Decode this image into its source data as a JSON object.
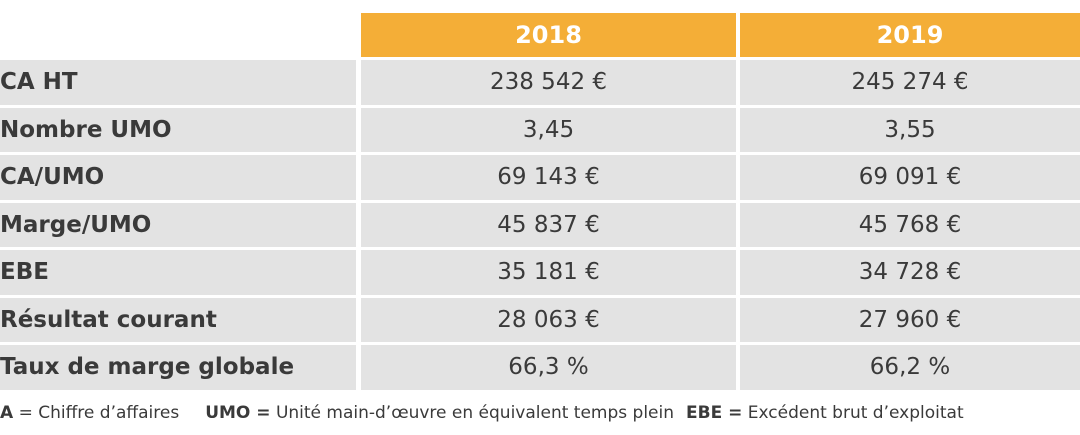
{
  "table": {
    "headers": [
      "2018",
      "2019"
    ],
    "rows": [
      {
        "label": "CA HT",
        "v2018": "238 542 €",
        "v2019": "245 274 €"
      },
      {
        "label": "Nombre UMO",
        "v2018": "3,45",
        "v2019": "3,55"
      },
      {
        "label": "CA/UMO",
        "v2018": "69 143 €",
        "v2019": "69 091 €"
      },
      {
        "label": "Marge/UMO",
        "v2018": "45 837 €",
        "v2019": "45 768 €"
      },
      {
        "label": "EBE",
        "v2018": "35 181 €",
        "v2019": "34 728 €"
      },
      {
        "label": "Résultat courant",
        "v2018": "28 063 €",
        "v2019": "27 960 €"
      },
      {
        "label": "Taux de marge globale",
        "v2018": "66,3 %",
        "v2019": "66,2 %"
      }
    ]
  },
  "legend": {
    "ca_abbr": "A",
    "ca_text": "= Chiffre d’affaires",
    "umo_abbr": "UMO =",
    "umo_text": "Unité main-d’œuvre en équivalent temps plein",
    "ebe_abbr": "EBE =",
    "ebe_text": "Excédent brut d’exploitat"
  },
  "colors": {
    "header_bg": "#f4ae37",
    "row_bg": "#e3e3e3"
  }
}
